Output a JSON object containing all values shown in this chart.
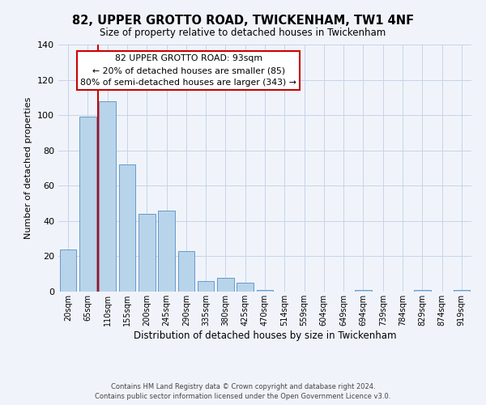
{
  "title": "82, UPPER GROTTO ROAD, TWICKENHAM, TW1 4NF",
  "subtitle": "Size of property relative to detached houses in Twickenham",
  "xlabel": "Distribution of detached houses by size in Twickenham",
  "ylabel": "Number of detached properties",
  "categories": [
    "20sqm",
    "65sqm",
    "110sqm",
    "155sqm",
    "200sqm",
    "245sqm",
    "290sqm",
    "335sqm",
    "380sqm",
    "425sqm",
    "470sqm",
    "514sqm",
    "559sqm",
    "604sqm",
    "649sqm",
    "694sqm",
    "739sqm",
    "784sqm",
    "829sqm",
    "874sqm",
    "919sqm"
  ],
  "values": [
    24,
    99,
    108,
    72,
    44,
    46,
    23,
    6,
    8,
    5,
    1,
    0,
    0,
    0,
    0,
    1,
    0,
    0,
    1,
    0,
    1
  ],
  "bar_color": "#b8d4ea",
  "bar_edge_color": "#6699cc",
  "vline_color": "#cc0000",
  "vline_position": 1.5,
  "ylim": [
    0,
    140
  ],
  "yticks": [
    0,
    20,
    40,
    60,
    80,
    100,
    120,
    140
  ],
  "annotation_text_line1": "82 UPPER GROTTO ROAD: 93sqm",
  "annotation_text_line2": "← 20% of detached houses are smaller (85)",
  "annotation_text_line3": "80% of semi-detached houses are larger (343) →",
  "footer_line1": "Contains HM Land Registry data © Crown copyright and database right 2024.",
  "footer_line2": "Contains public sector information licensed under the Open Government Licence v3.0.",
  "background_color": "#f0f4fa",
  "grid_color": "#c8d4e8",
  "box_edge_color": "#cc0000"
}
